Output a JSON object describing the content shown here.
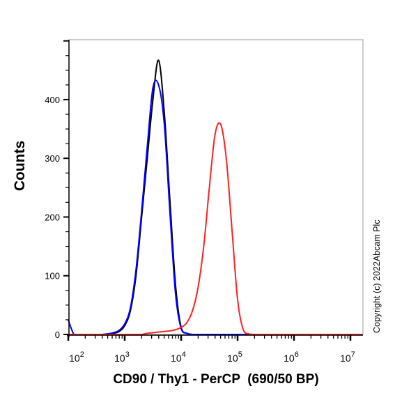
{
  "chart_data": {
    "type": "line",
    "title": "",
    "xlabel": "CD90 / Thy1 - PerCP  (690/50 BP)",
    "ylabel": "Counts",
    "x_scale": "log",
    "xlim": [
      100,
      17000000
    ],
    "ylim": [
      0,
      502
    ],
    "x_ticks": [
      {
        "base": "10",
        "exp": "2",
        "value": 100
      },
      {
        "base": "10",
        "exp": "3",
        "value": 1000
      },
      {
        "base": "10",
        "exp": "4",
        "value": 10000
      },
      {
        "base": "10",
        "exp": "5",
        "value": 100000
      },
      {
        "base": "10",
        "exp": "6",
        "value": 1000000
      },
      {
        "base": "10",
        "exp": "7",
        "value": 10000000
      }
    ],
    "y_ticks": [
      "0",
      "100",
      "200",
      "300",
      "400"
    ],
    "grid": false,
    "x": [
      100,
      126,
      158,
      200,
      251,
      316,
      398,
      501,
      631,
      794,
      1000,
      1259,
      1585,
      1995,
      2512,
      3162,
      3981,
      5012,
      6310,
      7943,
      10000,
      12589,
      15849,
      19953,
      25119,
      31623,
      39811,
      50119,
      63096,
      79433,
      100000,
      125893,
      158489,
      199526,
      251189,
      17000000
    ],
    "series": [
      {
        "color": "#000000",
        "values": [
          0,
          0,
          0,
          0,
          0,
          0,
          0,
          1,
          2,
          5,
          15,
          40,
          100,
          200,
          300,
          400,
          467,
          380,
          230,
          85,
          12,
          2,
          0,
          0,
          0,
          0,
          0,
          0,
          0,
          0,
          0,
          0,
          0,
          0,
          0,
          0
        ]
      },
      {
        "color": "#0000ff",
        "values": [
          25,
          0,
          0,
          0,
          0,
          0,
          0,
          1,
          3,
          7,
          18,
          45,
          110,
          210,
          320,
          420,
          425,
          360,
          210,
          70,
          10,
          2,
          0,
          0,
          0,
          0,
          0,
          0,
          0,
          0,
          0,
          0,
          0,
          0,
          0,
          0
        ]
      },
      {
        "color": "#ff2020",
        "values": [
          0,
          0,
          0,
          0,
          0,
          0,
          0,
          0,
          0,
          0,
          0,
          0,
          0,
          0,
          2,
          3,
          4,
          5,
          6,
          8,
          12,
          20,
          40,
          80,
          150,
          250,
          340,
          358,
          300,
          180,
          60,
          8,
          1,
          0,
          0,
          0
        ]
      }
    ]
  },
  "copyright": "Copyright (c) 2022Abcam Plc"
}
